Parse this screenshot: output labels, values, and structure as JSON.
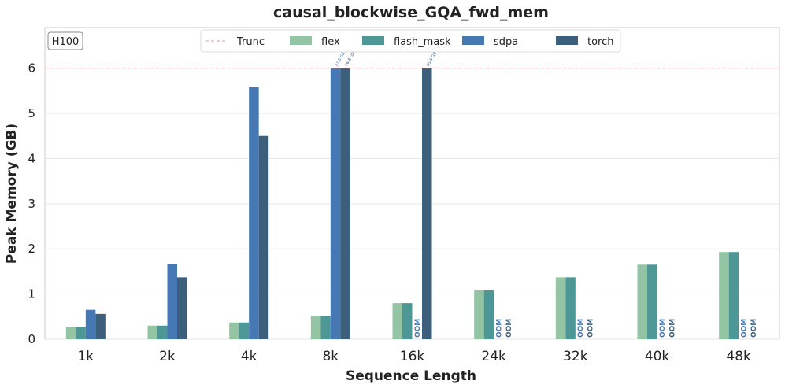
{
  "chart_data": {
    "type": "bar",
    "title": "causal_blockwise_GQA_fwd_mem",
    "xlabel": "Sequence Length",
    "ylabel": "Peak Memory (GB)",
    "ylim": [
      0,
      6.9
    ],
    "yticks": [
      0,
      1,
      2,
      3,
      4,
      5,
      6
    ],
    "truncate_at": 6,
    "truncate_label": "Trunc",
    "badge": "H100",
    "oom_label": "OOM",
    "categories": [
      "1k",
      "2k",
      "4k",
      "8k",
      "16k",
      "24k",
      "32k",
      "40k",
      "48k"
    ],
    "series": [
      {
        "name": "flex",
        "color": "#93c4a4",
        "values": [
          0.27,
          0.3,
          0.37,
          0.52,
          0.8,
          1.08,
          1.37,
          1.65,
          1.93
        ]
      },
      {
        "name": "flash_mask",
        "color": "#4e9797",
        "values": [
          0.27,
          0.3,
          0.37,
          0.52,
          0.8,
          1.08,
          1.37,
          1.65,
          1.93
        ]
      },
      {
        "name": "sdpa",
        "color": "#4678b4",
        "values": [
          0.65,
          1.66,
          5.58,
          21.0,
          "OOM",
          "OOM",
          "OOM",
          "OOM",
          "OOM"
        ]
      },
      {
        "name": "torch",
        "color": "#3c5f7c",
        "values": [
          0.56,
          1.37,
          4.5,
          16.8,
          65.9,
          "OOM",
          "OOM",
          "OOM",
          "OOM"
        ]
      }
    ],
    "truncated_labels": {
      "sdpa": [
        "",
        "",
        "",
        "21.0 GB",
        "",
        "",
        "",
        "",
        ""
      ],
      "torch": [
        "",
        "",
        "",
        "16.8 GB",
        "65.9 GB",
        "",
        "",
        "",
        ""
      ]
    },
    "legend_placement": "top-center",
    "grid": true
  }
}
